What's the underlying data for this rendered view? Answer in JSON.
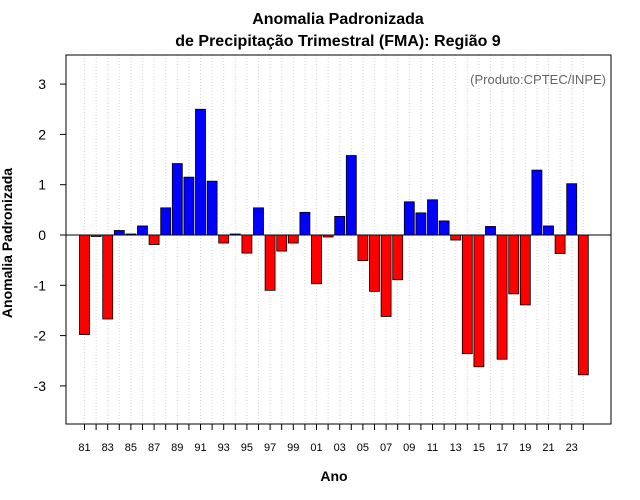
{
  "chart_data": {
    "type": "bar",
    "title": [
      "Anomalia Padronizada",
      "de Precipitação Trimestral (FMA): Região 9"
    ],
    "xlabel": "Ano",
    "ylabel": "Anomalia Padronizada",
    "credit": "(Produto:CPTEC/INPE)",
    "ylim": [
      -3.8,
      3.5
    ],
    "yticks": [
      -3,
      -2,
      -1,
      0,
      1,
      2,
      3
    ],
    "ytick_labels": [
      "-3",
      "-2",
      "-1",
      "0",
      "1",
      "2",
      "3"
    ],
    "xtick_labels": [
      "81",
      "83",
      "85",
      "87",
      "89",
      "91",
      "93",
      "95",
      "97",
      "99",
      "01",
      "03",
      "05",
      "07",
      "09",
      "11",
      "13",
      "15",
      "17",
      "19",
      "21",
      "23"
    ],
    "categories": [
      "1981",
      "1982",
      "1983",
      "1984",
      "1985",
      "1986",
      "1987",
      "1988",
      "1989",
      "1990",
      "1991",
      "1992",
      "1993",
      "1994",
      "1995",
      "1996",
      "1997",
      "1998",
      "1999",
      "2000",
      "2001",
      "2002",
      "2003",
      "2004",
      "2005",
      "2006",
      "2007",
      "2008",
      "2009",
      "2010",
      "2011",
      "2012",
      "2013",
      "2014",
      "2015",
      "2016",
      "2017",
      "2018",
      "2019",
      "2020",
      "2021",
      "2022",
      "2023",
      "2024"
    ],
    "values": [
      -1.98,
      -0.03,
      -1.67,
      0.09,
      0.02,
      0.18,
      -0.19,
      0.54,
      1.42,
      1.15,
      2.5,
      1.07,
      -0.16,
      0.02,
      -0.36,
      0.54,
      -1.1,
      -0.32,
      -0.16,
      0.45,
      -0.97,
      -0.04,
      0.37,
      1.58,
      -0.51,
      -1.12,
      -1.62,
      -0.89,
      0.66,
      0.44,
      0.7,
      0.28,
      -0.1,
      -2.36,
      -2.62,
      0.17,
      -2.47,
      -1.17,
      -1.39,
      1.29,
      0.18,
      -0.37,
      1.02,
      -2.78
    ],
    "colors": {
      "positive": "#0000ff",
      "negative": "#ff0000",
      "grid": "#cccccc",
      "credit": "#666666"
    },
    "grid": "vertical dotted",
    "legend": "none"
  }
}
